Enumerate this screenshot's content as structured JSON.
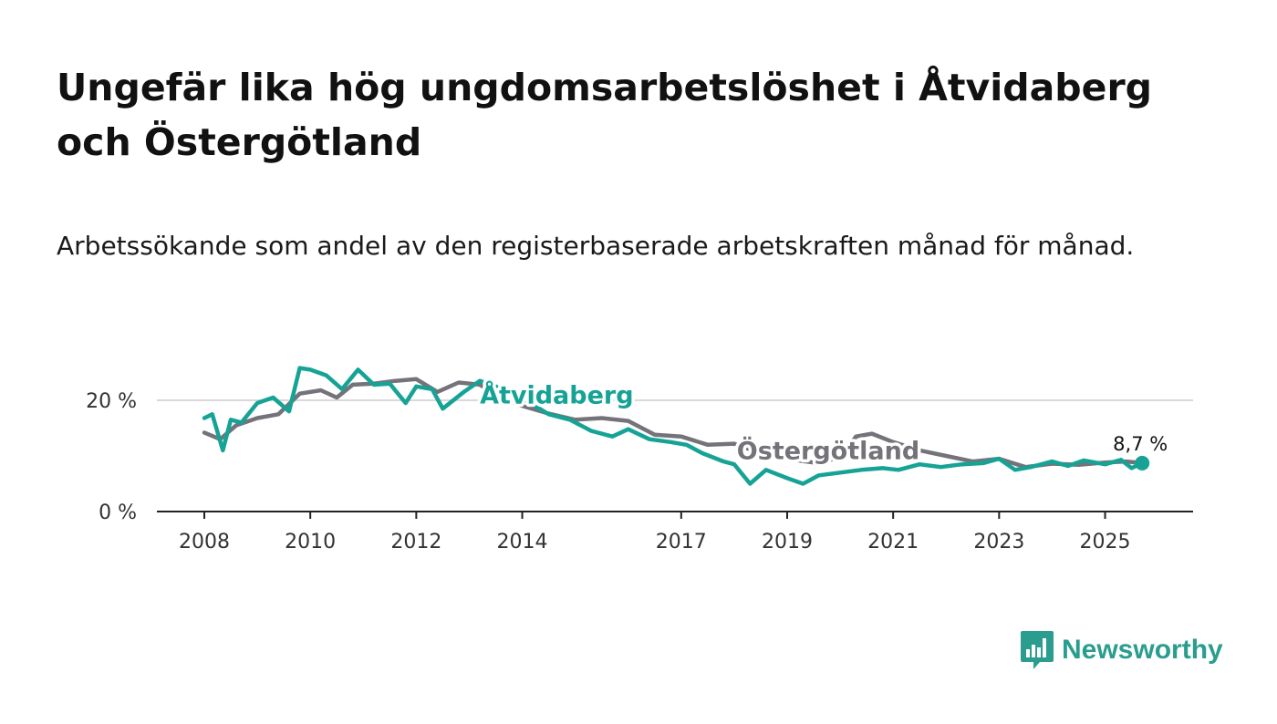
{
  "title": "Ungefär lika hög ungdomsarbetslöshet i Åtvidaberg och Östergötland",
  "subtitle": "Arbetssökande som andel av den registerbaserade arbetskraften månad för månad.",
  "brand": {
    "name": "Newsworthy"
  },
  "colors": {
    "atvidaberg": "#16a396",
    "ostergotland": "#75737a",
    "axis": "#222222",
    "grid": "#d9d9d9"
  },
  "chart_data": {
    "type": "line",
    "title": "Ungefär lika hög ungdomsarbetslöshet i Åtvidaberg och Östergötland",
    "ylabel": "",
    "xlabel": "",
    "xlim": [
      2008,
      2025.8
    ],
    "ylim": [
      0,
      25
    ],
    "y_ticks": [
      {
        "value": 0,
        "label": "0 %"
      },
      {
        "value": 20,
        "label": "20 %"
      }
    ],
    "x_ticks": [
      {
        "value": 2008,
        "label": "2008"
      },
      {
        "value": 2010,
        "label": "2010"
      },
      {
        "value": 2012,
        "label": "2012"
      },
      {
        "value": 2014,
        "label": "2014"
      },
      {
        "value": 2017,
        "label": "2017"
      },
      {
        "value": 2019,
        "label": "2019"
      },
      {
        "value": 2021,
        "label": "2021"
      },
      {
        "value": 2023,
        "label": "2023"
      },
      {
        "value": 2025,
        "label": "2025"
      }
    ],
    "end_label": "8,7 %",
    "series": [
      {
        "name": "Östergötland",
        "label": "Östergötland",
        "x": [
          2008.0,
          2008.3,
          2008.6,
          2009.0,
          2009.4,
          2009.8,
          2010.2,
          2010.5,
          2010.8,
          2011.2,
          2011.6,
          2012.0,
          2012.4,
          2012.8,
          2013.2,
          2013.6,
          2014.0,
          2014.5,
          2015.0,
          2015.5,
          2016.0,
          2016.5,
          2017.0,
          2017.5,
          2018.0,
          2018.5,
          2019.0,
          2019.5,
          2020.0,
          2020.3,
          2020.6,
          2021.0,
          2021.5,
          2022.0,
          2022.5,
          2023.0,
          2023.5,
          2024.0,
          2024.5,
          2025.0,
          2025.4,
          2025.7
        ],
        "values": [
          14.2,
          13.0,
          15.5,
          16.8,
          17.5,
          21.2,
          21.8,
          20.5,
          22.8,
          23.0,
          23.5,
          23.8,
          21.5,
          23.2,
          22.8,
          20.5,
          19.0,
          17.6,
          16.5,
          16.8,
          16.3,
          13.8,
          13.5,
          12.0,
          12.2,
          10.5,
          9.5,
          8.8,
          9.6,
          13.5,
          14.0,
          12.5,
          11.0,
          10.0,
          9.0,
          9.5,
          8.0,
          8.6,
          8.4,
          8.8,
          9.0,
          8.7
        ]
      },
      {
        "name": "Åtvidaberg",
        "label": "Åtvidaberg",
        "x": [
          2008.0,
          2008.15,
          2008.35,
          2008.5,
          2008.7,
          2009.0,
          2009.3,
          2009.6,
          2009.8,
          2010.0,
          2010.3,
          2010.6,
          2010.9,
          2011.2,
          2011.5,
          2011.8,
          2012.0,
          2012.3,
          2012.5,
          2012.9,
          2013.2,
          2013.5,
          2013.8,
          2014.1,
          2014.5,
          2014.9,
          2015.3,
          2015.7,
          2016.0,
          2016.4,
          2016.8,
          2017.1,
          2017.4,
          2017.8,
          2018.0,
          2018.3,
          2018.6,
          2019.0,
          2019.3,
          2019.6,
          2020.0,
          2020.4,
          2020.8,
          2021.1,
          2021.5,
          2021.9,
          2022.3,
          2022.7,
          2023.0,
          2023.3,
          2023.6,
          2024.0,
          2024.3,
          2024.6,
          2025.0,
          2025.3,
          2025.5,
          2025.7
        ],
        "values": [
          16.8,
          17.5,
          11.0,
          16.5,
          16.0,
          19.5,
          20.5,
          18.0,
          25.8,
          25.5,
          24.5,
          22.0,
          25.5,
          22.8,
          23.0,
          19.5,
          22.5,
          22.0,
          18.5,
          21.5,
          23.5,
          22.5,
          21.0,
          19.8,
          17.5,
          16.5,
          14.5,
          13.5,
          14.8,
          13.0,
          12.5,
          12.0,
          10.5,
          9.0,
          8.5,
          5.0,
          7.5,
          6.0,
          5.0,
          6.5,
          7.0,
          7.5,
          7.8,
          7.5,
          8.5,
          8.0,
          8.5,
          8.7,
          9.5,
          7.5,
          8.0,
          9.0,
          8.2,
          9.2,
          8.5,
          9.3,
          7.8,
          8.7
        ]
      }
    ]
  }
}
